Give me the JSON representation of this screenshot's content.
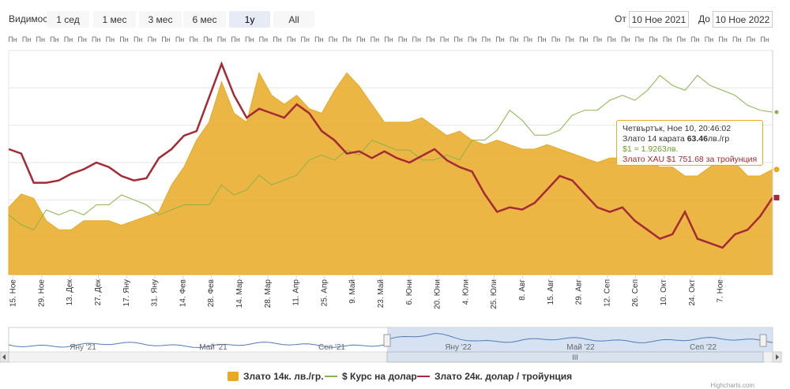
{
  "toolbar": {
    "visibility_label": "Видимост",
    "buttons": [
      "1 сед",
      "1 мес",
      "3 мес",
      "6 мес",
      "1y",
      "All"
    ],
    "active_index": 4,
    "from_label": "От",
    "from_value": "10 Ное 2021",
    "to_label": "До",
    "to_value": "10 Ное 2022"
  },
  "top_axis_label": "Пн",
  "tooltip": {
    "header": "Четвъртък, Ное 10, 20:46:02",
    "gold14_prefix": "Злато 14 карата ",
    "gold14_value": "63.46",
    "gold14_unit": "лв./гр",
    "usd_text": "$1 = 1.9263лв.",
    "xau_text": "Злато XAU $1 751.68 за тройунция"
  },
  "navigator": {
    "labels": [
      "Яну '21",
      "Май '21",
      "Сеп '21",
      "Яну '22",
      "Май '22",
      "Сеп '22"
    ],
    "handle_glyph": "III"
  },
  "legend": [
    {
      "name": "Злато 14к. лв./гр.",
      "color": "#e8a923",
      "kind": "area"
    },
    {
      "name": "$ Курс на долар",
      "color": "#8ab34a",
      "kind": "line"
    },
    {
      "name": "Злато 24к. долар / тройунция",
      "color": "#a52a35",
      "kind": "line"
    }
  ],
  "colors": {
    "gold14": "#e8a923",
    "usd": "#8ab34a",
    "xau": "#a52a35",
    "grid": "#e6e6e6",
    "nav_fill": "#c8d8ee"
  },
  "credits": "Highcharts.com",
  "chart_data": {
    "type": "area",
    "x_tick_labels": [
      "15. Ное",
      "29. Ное",
      "13. Дек",
      "27. Дек",
      "17. Яну",
      "31. Яну",
      "14. Фев",
      "28. Фев",
      "14. Мар",
      "28. Мар",
      "11. Апр",
      "25. Апр",
      "9. Май",
      "23. Май",
      "6. Юни",
      "20. Юни",
      "4. Юли",
      "25. Юли",
      "8. Авг",
      "15. Авг",
      "29. Авг",
      "12. Сеп",
      "26. Сеп",
      "10. Окт",
      "24. Окт",
      "7. Ное"
    ],
    "series": [
      {
        "name": "Злато 14к. лв./гр.",
        "values": [
          55,
          58,
          57,
          52,
          50,
          50,
          52,
          52,
          52,
          51,
          52,
          53,
          54,
          60,
          64,
          70,
          74,
          83,
          76,
          74,
          85,
          80,
          78,
          80,
          77,
          76,
          81,
          85,
          82,
          78,
          74,
          74,
          74,
          75,
          73,
          71,
          72,
          70,
          69,
          70,
          69,
          68,
          68,
          69,
          68,
          67,
          66,
          65,
          66,
          66,
          65,
          65,
          64,
          64,
          62,
          62,
          64,
          66,
          65,
          62,
          62,
          63.46
        ]
      },
      {
        "name": "$ Курс на долар",
        "values": [
          1.72,
          1.7,
          1.69,
          1.73,
          1.72,
          1.73,
          1.72,
          1.74,
          1.74,
          1.76,
          1.75,
          1.74,
          1.72,
          1.73,
          1.74,
          1.74,
          1.74,
          1.78,
          1.76,
          1.77,
          1.8,
          1.78,
          1.79,
          1.8,
          1.83,
          1.84,
          1.83,
          1.85,
          1.84,
          1.87,
          1.86,
          1.85,
          1.85,
          1.83,
          1.83,
          1.84,
          1.83,
          1.87,
          1.87,
          1.89,
          1.93,
          1.91,
          1.88,
          1.88,
          1.89,
          1.92,
          1.93,
          1.93,
          1.95,
          1.96,
          1.95,
          1.97,
          2.0,
          1.98,
          1.97,
          2.0,
          1.98,
          1.97,
          1.96,
          1.94,
          1.93,
          1.9263
        ]
      },
      {
        "name": "Злато 24к. долар / тройунция",
        "values": [
          1860,
          1850,
          1785,
          1785,
          1790,
          1805,
          1815,
          1830,
          1820,
          1800,
          1790,
          1795,
          1840,
          1860,
          1890,
          1900,
          1975,
          2050,
          1980,
          1930,
          1950,
          1940,
          1930,
          1960,
          1940,
          1900,
          1880,
          1850,
          1855,
          1840,
          1855,
          1840,
          1830,
          1845,
          1860,
          1835,
          1820,
          1810,
          1760,
          1720,
          1730,
          1725,
          1740,
          1770,
          1800,
          1790,
          1760,
          1730,
          1720,
          1730,
          1700,
          1680,
          1660,
          1670,
          1720,
          1660,
          1650,
          1640,
          1670,
          1680,
          1710,
          1751.68
        ]
      }
    ],
    "y_axis": {
      "visible_labels": false,
      "grid": true
    }
  }
}
